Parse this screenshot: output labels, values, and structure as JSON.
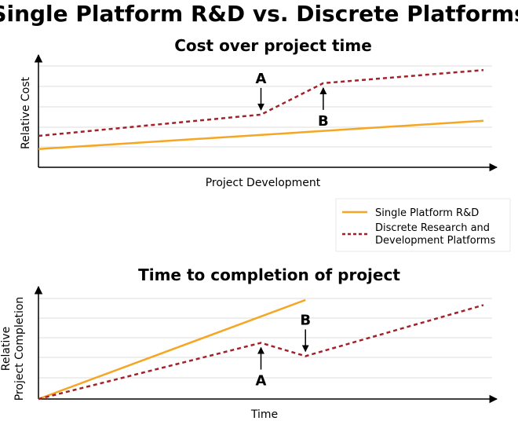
{
  "title": "Single Platform R&D vs. Discrete Platforms",
  "colors": {
    "single": "#f5a623",
    "discrete": "#a3222a",
    "grid": "#dcdcdc",
    "axis": "#000000"
  },
  "legend": {
    "placement": "right, between the two charts",
    "single_label": "Single Platform R&D",
    "discrete_line1": "Discrete Research and",
    "discrete_line2": "Development Platforms"
  },
  "chart_data": [
    {
      "type": "line",
      "title": "Cost over project time",
      "xlabel": "Project Development",
      "ylabel": "Relative Cost",
      "xlim": [
        0,
        100
      ],
      "ylim": [
        0,
        100
      ],
      "grid": true,
      "series": [
        {
          "name": "Single Platform R&D",
          "style": "solid",
          "x": [
            0,
            100
          ],
          "y": [
            18,
            46
          ]
        },
        {
          "name": "Discrete Research and Development Platforms",
          "style": "dashed",
          "x": [
            0,
            50,
            64,
            100
          ],
          "y": [
            31,
            52,
            83,
            96
          ]
        }
      ],
      "annotations": [
        {
          "label": "A",
          "x": 50,
          "arrow": "down",
          "on": "discrete"
        },
        {
          "label": "B",
          "x": 64,
          "arrow": "up",
          "on": "discrete"
        }
      ]
    },
    {
      "type": "line",
      "title": "Time to completion of project",
      "xlabel": "Time",
      "ylabel_line1": "Relative",
      "ylabel_line2": "Project Completion",
      "xlim": [
        0,
        100
      ],
      "ylim": [
        0,
        100
      ],
      "grid": true,
      "series": [
        {
          "name": "Single Platform R&D",
          "style": "solid",
          "x": [
            0,
            60
          ],
          "y": [
            0,
            97
          ]
        },
        {
          "name": "Discrete Research and Development Platforms",
          "style": "dashed",
          "x": [
            0,
            50,
            60,
            100
          ],
          "y": [
            0,
            55,
            42,
            92
          ]
        }
      ],
      "annotations": [
        {
          "label": "A",
          "x": 50,
          "arrow": "up",
          "on": "discrete"
        },
        {
          "label": "B",
          "x": 60,
          "arrow": "down",
          "on": "discrete"
        }
      ]
    }
  ]
}
